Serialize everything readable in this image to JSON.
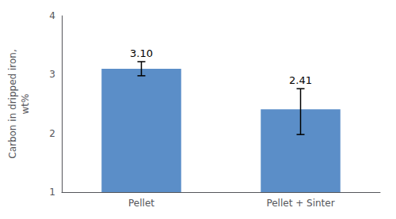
{
  "chart_data": {
    "type": "bar",
    "categories": [
      "Pellet",
      "Pellet + Sinter"
    ],
    "values": [
      3.1,
      2.41
    ],
    "value_labels": [
      "3.10",
      "2.41"
    ],
    "data_labels": true,
    "errors_neg": [
      0.12,
      0.43
    ],
    "errors_pos": [
      0.12,
      0.35
    ],
    "color": "#5b8ec8",
    "ylabel": "Carbon in dripped iron,\nwt%",
    "ylim": [
      1,
      4
    ],
    "yticks": [
      1,
      2,
      3,
      4
    ],
    "grid": false
  }
}
